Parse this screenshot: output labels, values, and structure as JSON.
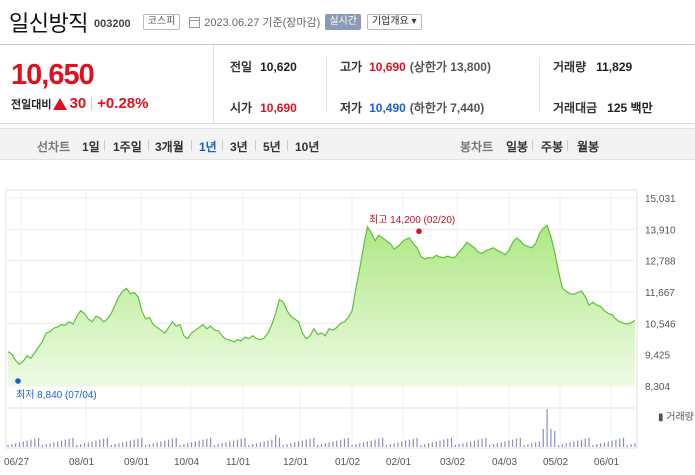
{
  "stock": {
    "name": "일신방직",
    "code": "003200",
    "market": "코스피",
    "date": "2023.06.27 기준(장마감)",
    "realtime_label": "실시간",
    "overview_label": "기업개요 ▾"
  },
  "quote": {
    "current": "10,650",
    "change_label": "전일대비",
    "change_abs": "30",
    "change_pct": "+0.28%",
    "prev_label": "전일",
    "prev": "10,620",
    "high_label": "고가",
    "high": "10,690",
    "upper_limit": "(상한가 13,800)",
    "volume_label": "거래량",
    "volume": "11,829",
    "open_label": "시가",
    "open": "10,690",
    "low_label": "저가",
    "low": "10,490",
    "lower_limit": "(하한가 7,440)",
    "amount_label": "거래대금",
    "amount": "125 백만"
  },
  "tabs": {
    "line_label": "선차트",
    "line": [
      "1일",
      "1주일",
      "3개월",
      "1년",
      "3년",
      "5년",
      "10년"
    ],
    "active": "1년",
    "candle_label": "봉차트",
    "candle": [
      "일봉",
      "주봉",
      "월봉"
    ]
  },
  "colors": {
    "up": "#e0101f",
    "down": "#1a60d6",
    "line": "#5ec13a",
    "fill": "#b9ec93"
  },
  "chart_data": {
    "type": "area",
    "x_ticks": [
      "06/27",
      "08/01",
      "09/01",
      "10/04",
      "11/01",
      "12/01",
      "01/02",
      "02/01",
      "03/02",
      "04/03",
      "05/02",
      "06/01"
    ],
    "y_ticks": [
      15031,
      13910,
      12788,
      11667,
      10546,
      9425,
      8304
    ],
    "y_tick_labels": [
      "15,031",
      "13,910",
      "12,788",
      "11,667",
      "10,546",
      "9,425",
      "8,304"
    ],
    "ylim": [
      8304,
      15031
    ],
    "high_annotation": "최고 14,200 (02/20)",
    "low_annotation": "최저 8,840 (07/04)",
    "high_value": 14200,
    "low_value": 8840,
    "volume_label": "거래량",
    "grid": true,
    "values": [
      9530,
      9450,
      9220,
      9080,
      9200,
      9380,
      9300,
      9500,
      9700,
      9900,
      10200,
      10250,
      10380,
      10420,
      10500,
      10480,
      10600,
      10520,
      10800,
      11000,
      10900,
      10700,
      10600,
      10800,
      10750,
      10600,
      10700,
      10900,
      11200,
      11500,
      11700,
      11800,
      11600,
      11650,
      11500,
      11000,
      10700,
      10750,
      10500,
      10400,
      10300,
      10200,
      10400,
      10600,
      10450,
      10500,
      10100,
      10000,
      10200,
      10300,
      10400,
      10500,
      10350,
      10450,
      10300,
      10280,
      10100,
      9980,
      9950,
      9880,
      9960,
      9920,
      10050,
      10000,
      10100,
      10000,
      9960,
      10020,
      10200,
      10500,
      10900,
      11400,
      11300,
      11000,
      10800,
      10700,
      10600,
      10200,
      10000,
      10100,
      10350,
      10150,
      10200,
      10100,
      10350,
      10300,
      10400,
      10550,
      10600,
      10750,
      11000,
      11800,
      12500,
      13300,
      14000,
      13800,
      13500,
      13700,
      13600,
      13500,
      13400,
      13200,
      13300,
      13450,
      13550,
      13600,
      13400,
      13250,
      12950,
      12850,
      12900,
      12880,
      12980,
      12920,
      12900,
      12950,
      12900,
      12920,
      13100,
      13250,
      13450,
      13350,
      13250,
      13100,
      13050,
      13150,
      13200,
      13250,
      13150,
      13100,
      13000,
      13150,
      13450,
      13600,
      13500,
      13350,
      13300,
      13250,
      13400,
      13750,
      13950,
      14050,
      13650,
      13100,
      12400,
      11800,
      11700,
      11600,
      11580,
      11650,
      11700,
      11500,
      11200,
      11300,
      11200,
      11150,
      11000,
      10900,
      10850,
      10700,
      10600,
      10550,
      10520,
      10570,
      10650
    ]
  }
}
